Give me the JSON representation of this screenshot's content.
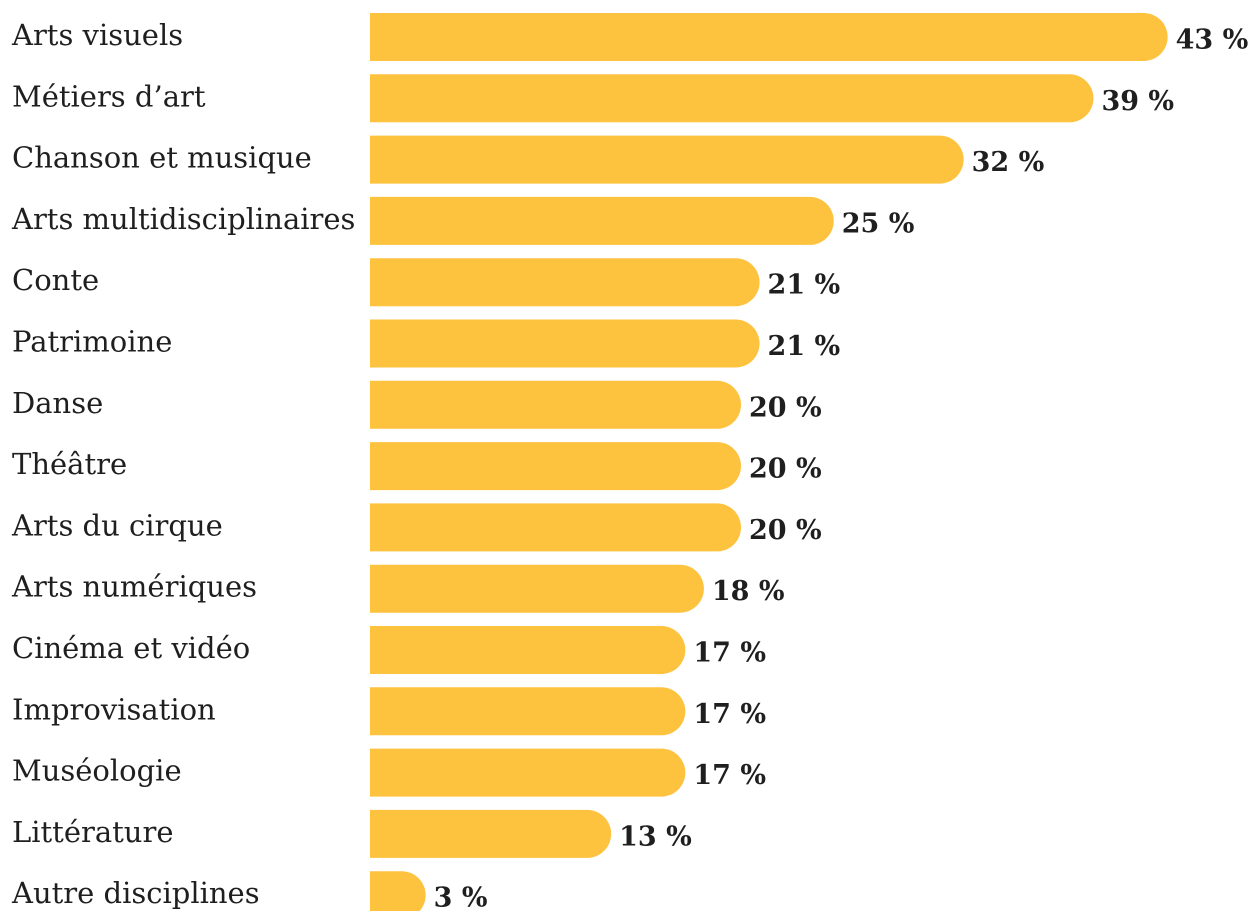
{
  "chart_data": {
    "type": "bar",
    "orientation": "horizontal",
    "categories": [
      "Arts visuels",
      "Métiers d’art",
      "Chanson et musique",
      "Arts multidisciplinaires",
      "Conte",
      "Patrimoine",
      "Danse",
      "Théâtre",
      "Arts du cirque",
      "Arts numériques",
      "Cinéma et vidéo",
      "Improvisation",
      "Muséologie",
      "Littérature",
      "Autre disciplines"
    ],
    "values": [
      43,
      39,
      32,
      25,
      21,
      21,
      20,
      20,
      20,
      18,
      17,
      17,
      17,
      13,
      3
    ],
    "value_labels": [
      "43 %",
      "39 %",
      "32 %",
      "25 %",
      "21 %",
      "21 %",
      "20 %",
      "20 %",
      "20 %",
      "18 %",
      "17 %",
      "17 %",
      "17 %",
      "13 %",
      "3 %"
    ],
    "bar_color": "#FDC23E",
    "text_color": "#1f1f1f",
    "grid": false,
    "legend": "none"
  }
}
